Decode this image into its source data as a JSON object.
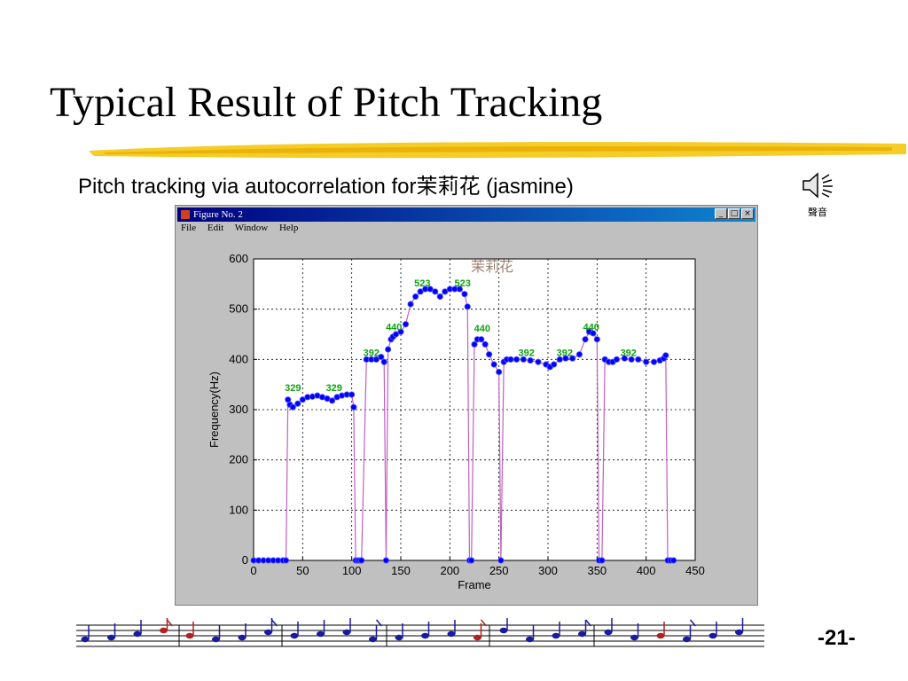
{
  "slide": {
    "title": "Typical Result of Pitch Tracking",
    "subtitle": "Pitch tracking via autocorrelation for茉莉花 (jasmine)",
    "speaker_label": "聲音",
    "page_number": "-21-",
    "accent_color": "#f5c400"
  },
  "window": {
    "title": "Figure No. 2",
    "menu": [
      "File",
      "Edit",
      "Window",
      "Help"
    ],
    "buttons": [
      "_",
      "□",
      "×"
    ]
  },
  "chart_data": {
    "type": "line",
    "title": "茉莉花",
    "xlabel": "Frame",
    "ylabel": "Frequency(Hz)",
    "xlim": [
      0,
      450
    ],
    "ylim": [
      0,
      600
    ],
    "xticks": [
      0,
      50,
      100,
      150,
      200,
      250,
      300,
      350,
      400,
      450
    ],
    "yticks": [
      0,
      100,
      200,
      300,
      400,
      500,
      600
    ],
    "grid": true,
    "line_color": "#c060c0",
    "marker_color": "#0000ff",
    "series": [
      {
        "x": [
          0,
          5,
          10,
          15,
          20,
          25,
          30,
          33,
          35,
          37,
          40,
          45,
          50,
          55,
          60,
          65,
          70,
          75,
          80,
          85,
          90,
          95,
          100,
          102,
          104,
          106,
          108,
          110,
          115,
          120,
          125,
          130,
          133,
          135,
          137,
          140,
          142,
          145,
          150,
          155,
          160,
          165,
          170,
          175,
          180,
          185,
          190,
          195,
          200,
          205,
          210,
          215,
          218,
          220,
          222,
          225,
          228,
          232,
          236,
          240,
          245,
          250,
          252,
          255,
          258,
          262,
          268,
          275,
          282,
          290,
          298,
          302,
          306,
          312,
          318,
          325,
          332,
          338,
          342,
          346,
          350,
          352,
          355,
          358,
          362,
          366,
          370,
          378,
          385,
          392,
          400,
          408,
          414,
          418,
          420,
          422,
          425,
          428
        ],
        "y": [
          0,
          0,
          0,
          0,
          0,
          0,
          0,
          0,
          320,
          310,
          305,
          312,
          320,
          325,
          326,
          328,
          325,
          322,
          318,
          325,
          328,
          330,
          330,
          305,
          0,
          0,
          0,
          0,
          400,
          400,
          400,
          405,
          395,
          0,
          420,
          440,
          445,
          450,
          455,
          470,
          510,
          525,
          535,
          540,
          540,
          535,
          525,
          535,
          540,
          540,
          540,
          530,
          505,
          0,
          0,
          430,
          440,
          440,
          430,
          410,
          390,
          375,
          0,
          395,
          400,
          400,
          400,
          400,
          398,
          395,
          390,
          385,
          390,
          400,
          402,
          402,
          410,
          440,
          455,
          452,
          440,
          0,
          0,
          400,
          395,
          395,
          400,
          402,
          400,
          400,
          395,
          395,
          398,
          402,
          408,
          0,
          0,
          0
        ]
      }
    ],
    "annotations": [
      {
        "text": "329",
        "x": 40,
        "y": 337
      },
      {
        "text": "329",
        "x": 82,
        "y": 337
      },
      {
        "text": "392",
        "x": 120,
        "y": 407
      },
      {
        "text": "440",
        "x": 143,
        "y": 458
      },
      {
        "text": "523",
        "x": 172,
        "y": 545
      },
      {
        "text": "523",
        "x": 213,
        "y": 545
      },
      {
        "text": "440",
        "x": 233,
        "y": 455
      },
      {
        "text": "392",
        "x": 278,
        "y": 407
      },
      {
        "text": "392",
        "x": 317,
        "y": 407
      },
      {
        "text": "440",
        "x": 344,
        "y": 458
      },
      {
        "text": "392",
        "x": 382,
        "y": 407
      }
    ]
  }
}
